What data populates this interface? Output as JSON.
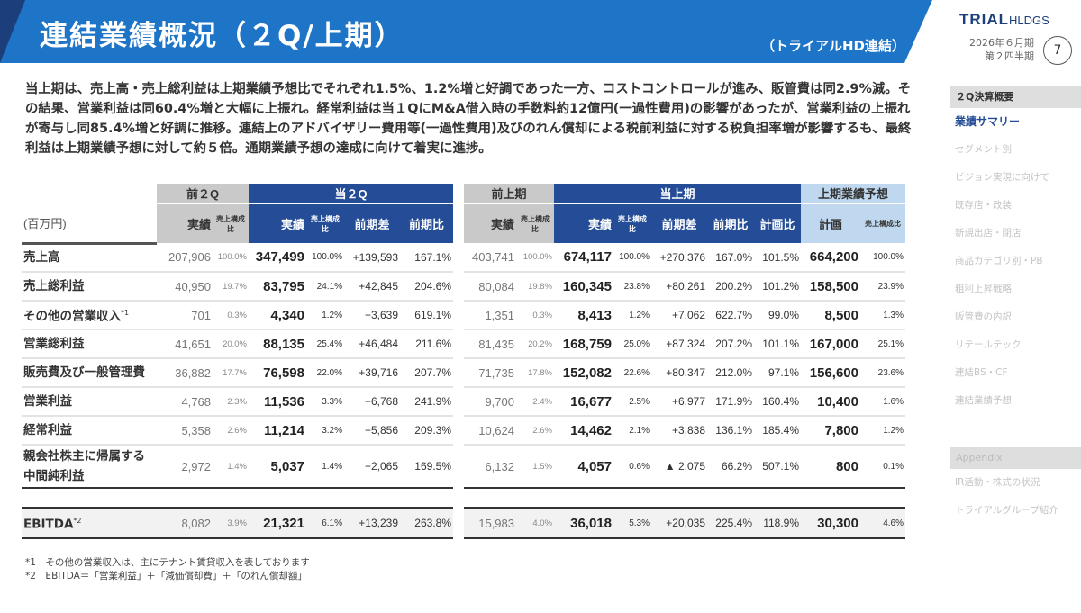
{
  "header": {
    "title": "連結業績概況（２Q/上期）",
    "subtitle": "（トライアルHD連結）",
    "logo_bold": "TRIAL",
    "logo_light": "HLDGS",
    "period_line1": "2026年６月期",
    "period_line2": "第２四半期",
    "page_number": "7"
  },
  "colors": {
    "banner": "#1e74c6",
    "navy": "#244c97",
    "gray_header": "#c9c9c9",
    "light_blue_header": "#bfd8ef"
  },
  "summary": "当上期は、売上高・売上総利益は上期業績予想比でそれぞれ1.5%、1.2%増と好調であった一方、コストコントロールが進み、販管費は同2.9%減。その結果、営業利益は同60.4%増と大幅に上振れ。経常利益は当１QにM&A借入時の手数料約12億円(一過性費用)の影響があったが、営業利益の上振れが寄与し同85.4%増と好調に推移。連結上のアドバイザリー費用等(一過性費用)及びのれん償却による税前利益に対する税負担率増が影響するも、最終利益は上期業績予想に対して約５倍。通期業績予想の達成に向けて着実に進捗。",
  "table": {
    "unit": "(百万円)",
    "groups_left": [
      "前２Q",
      "当２Q"
    ],
    "groups_right": [
      "前上期",
      "当上期",
      "上期業績予想"
    ],
    "col_actual": "実績",
    "col_ratio": "売上構成比",
    "col_diff": "前期差",
    "col_yoy": "前期比",
    "col_vs_plan": "計画比",
    "col_plan": "計画",
    "rows": [
      {
        "label": "売上高",
        "note": "",
        "q_prev": "207,906",
        "q_prev_r": "100.0%",
        "q_cur": "347,499",
        "q_cur_r": "100.0%",
        "q_diff": "+139,593",
        "q_yoy": "167.1%",
        "h_prev": "403,741",
        "h_prev_r": "100.0%",
        "h_cur": "674,117",
        "h_cur_r": "100.0%",
        "h_diff": "+270,376",
        "h_yoy": "167.0%",
        "h_vsplan": "101.5%",
        "plan": "664,200",
        "plan_r": "100.0%"
      },
      {
        "label": "売上総利益",
        "note": "",
        "q_prev": "40,950",
        "q_prev_r": "19.7%",
        "q_cur": "83,795",
        "q_cur_r": "24.1%",
        "q_diff": "+42,845",
        "q_yoy": "204.6%",
        "h_prev": "80,084",
        "h_prev_r": "19.8%",
        "h_cur": "160,345",
        "h_cur_r": "23.8%",
        "h_diff": "+80,261",
        "h_yoy": "200.2%",
        "h_vsplan": "101.2%",
        "plan": "158,500",
        "plan_r": "23.9%"
      },
      {
        "label": "その他の営業収入",
        "note": "*1",
        "q_prev": "701",
        "q_prev_r": "0.3%",
        "q_cur": "4,340",
        "q_cur_r": "1.2%",
        "q_diff": "+3,639",
        "q_yoy": "619.1%",
        "h_prev": "1,351",
        "h_prev_r": "0.3%",
        "h_cur": "8,413",
        "h_cur_r": "1.2%",
        "h_diff": "+7,062",
        "h_yoy": "622.7%",
        "h_vsplan": "99.0%",
        "plan": "8,500",
        "plan_r": "1.3%"
      },
      {
        "label": "営業総利益",
        "note": "",
        "q_prev": "41,651",
        "q_prev_r": "20.0%",
        "q_cur": "88,135",
        "q_cur_r": "25.4%",
        "q_diff": "+46,484",
        "q_yoy": "211.6%",
        "h_prev": "81,435",
        "h_prev_r": "20.2%",
        "h_cur": "168,759",
        "h_cur_r": "25.0%",
        "h_diff": "+87,324",
        "h_yoy": "207.2%",
        "h_vsplan": "101.1%",
        "plan": "167,000",
        "plan_r": "25.1%"
      },
      {
        "label": "販売費及び一般管理費",
        "note": "",
        "q_prev": "36,882",
        "q_prev_r": "17.7%",
        "q_cur": "76,598",
        "q_cur_r": "22.0%",
        "q_diff": "+39,716",
        "q_yoy": "207.7%",
        "h_prev": "71,735",
        "h_prev_r": "17.8%",
        "h_cur": "152,082",
        "h_cur_r": "22.6%",
        "h_diff": "+80,347",
        "h_yoy": "212.0%",
        "h_vsplan": "97.1%",
        "plan": "156,600",
        "plan_r": "23.6%"
      },
      {
        "label": "営業利益",
        "note": "",
        "q_prev": "4,768",
        "q_prev_r": "2.3%",
        "q_cur": "11,536",
        "q_cur_r": "3.3%",
        "q_diff": "+6,768",
        "q_yoy": "241.9%",
        "h_prev": "9,700",
        "h_prev_r": "2.4%",
        "h_cur": "16,677",
        "h_cur_r": "2.5%",
        "h_diff": "+6,977",
        "h_yoy": "171.9%",
        "h_vsplan": "160.4%",
        "plan": "10,400",
        "plan_r": "1.6%"
      },
      {
        "label": "経常利益",
        "note": "",
        "q_prev": "5,358",
        "q_prev_r": "2.6%",
        "q_cur": "11,214",
        "q_cur_r": "3.2%",
        "q_diff": "+5,856",
        "q_yoy": "209.3%",
        "h_prev": "10,624",
        "h_prev_r": "2.6%",
        "h_cur": "14,462",
        "h_cur_r": "2.1%",
        "h_diff": "+3,838",
        "h_yoy": "136.1%",
        "h_vsplan": "185.4%",
        "plan": "7,800",
        "plan_r": "1.2%"
      },
      {
        "label": "親会社株主に帰属する中間純利益",
        "note": "",
        "q_prev": "2,972",
        "q_prev_r": "1.4%",
        "q_cur": "5,037",
        "q_cur_r": "1.4%",
        "q_diff": "+2,065",
        "q_yoy": "169.5%",
        "h_prev": "6,132",
        "h_prev_r": "1.5%",
        "h_cur": "4,057",
        "h_cur_r": "0.6%",
        "h_diff": "▲ 2,075",
        "h_yoy": "66.2%",
        "h_vsplan": "507.1%",
        "plan": "800",
        "plan_r": "0.1%"
      },
      {
        "label": "EBITDA",
        "note": "*2",
        "q_prev": "8,082",
        "q_prev_r": "3.9%",
        "q_cur": "21,321",
        "q_cur_r": "6.1%",
        "q_diff": "+13,239",
        "q_yoy": "263.8%",
        "h_prev": "15,983",
        "h_prev_r": "4.0%",
        "h_cur": "36,018",
        "h_cur_r": "5.3%",
        "h_diff": "+20,035",
        "h_yoy": "225.4%",
        "h_vsplan": "118.9%",
        "plan": "30,300",
        "plan_r": "4.6%"
      }
    ]
  },
  "footnotes": [
    "*1　その他の営業収入は、主にテナント賃貸収入を表しております",
    "*2　EBITDA＝「営業利益」＋「減価償却費」＋「のれん償却額」"
  ],
  "sidebar": {
    "section": "２Q決算概要",
    "items": [
      "業績サマリー",
      "セグメント別",
      "ビジョン実現に向けて",
      "既存店・改装",
      "新規出店・閉店",
      "商品カテゴリ別・PB",
      "粗利上昇戦略",
      "販管費の内訳",
      "リテールテック",
      "連結BS・CF",
      "連結業績予想"
    ],
    "active_index": 0,
    "appendix": "Appendix",
    "appendix_items": [
      "IR活動・株式の状況",
      "トライアルグループ紹介"
    ]
  }
}
